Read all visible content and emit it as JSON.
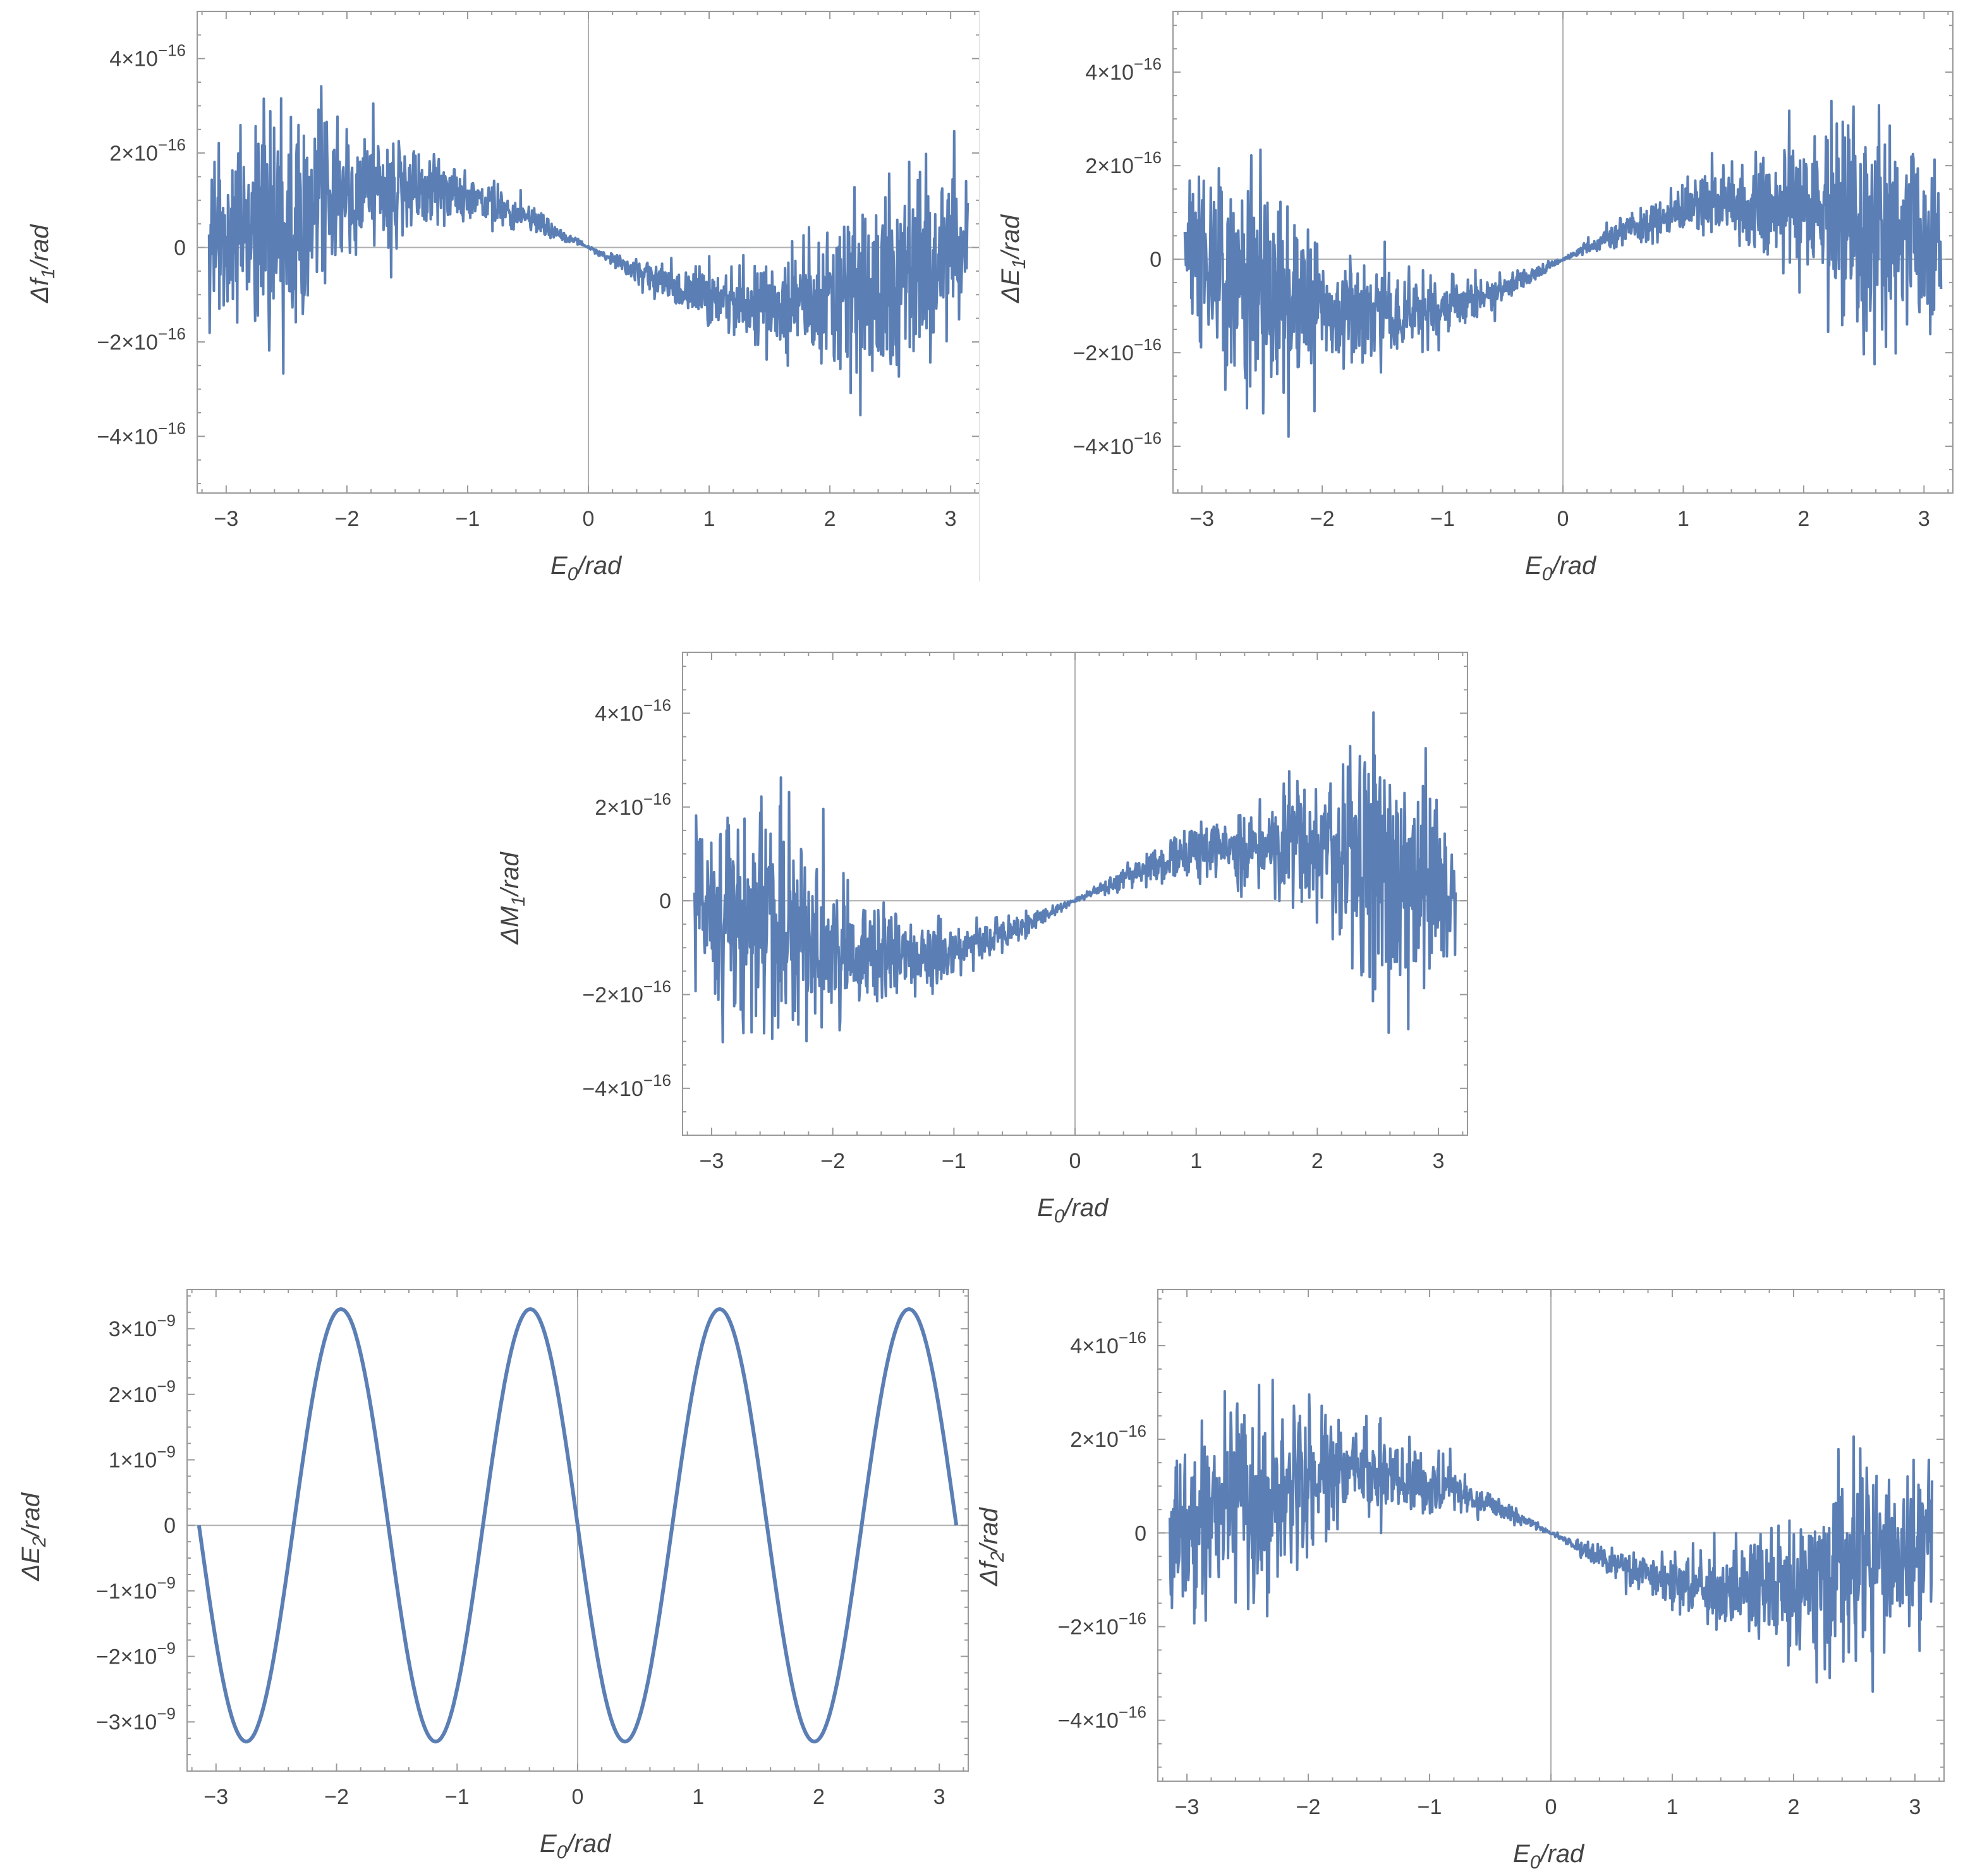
{
  "colors": {
    "series": "#5b7fb5",
    "frame": "#999999",
    "zero_line": "#b0b0b0",
    "text": "#444444"
  },
  "chart_data": [
    {
      "id": "df1",
      "type": "line",
      "title": "",
      "xlabel": "E0/rad",
      "xlabel_main": "E",
      "xlabel_sub": "0",
      "xlabel_rest": "/rad",
      "ylabel": "Δf1/rad",
      "ylabel_main": "Δf",
      "ylabel_sub": "1",
      "ylabel_rest": "/rad",
      "xlim": [
        -3.24,
        3.24
      ],
      "ylim": [
        -5.2e-16,
        5e-16
      ],
      "x_ticks": [
        -3,
        -2,
        -1,
        0,
        1,
        2,
        3
      ],
      "x_tick_labels": [
        "−3",
        "−2",
        "−1",
        "0",
        "1",
        "2",
        "3"
      ],
      "y_ticks": [
        {
          "value": 4e-16,
          "mant": "4",
          "exp": "−16"
        },
        {
          "value": 2e-16,
          "mant": "2",
          "exp": "−16"
        },
        {
          "value": 0,
          "mant": "0",
          "exp": ""
        },
        {
          "value": -2e-16,
          "mant": "−2",
          "exp": "−16"
        },
        {
          "value": -4e-16,
          "mant": "−4",
          "exp": "−16"
        }
      ],
      "grid": false,
      "noise": {
        "trend_sign": -1,
        "trend_amplitude": 1.3e-16,
        "noise_envelope": [
          [
            -3.14,
            2.3e-16
          ],
          [
            -2.5,
            3.6e-16
          ],
          [
            -2.0,
            2e-16
          ],
          [
            -1.0,
            8e-17
          ],
          [
            0,
            5e-18
          ],
          [
            1.0,
            8e-17
          ],
          [
            2.0,
            2e-16
          ],
          [
            2.5,
            3.6e-16
          ],
          [
            3.14,
            2.3e-16
          ]
        ]
      }
    },
    {
      "id": "dE1",
      "type": "line",
      "title": "",
      "xlabel": "E0/rad",
      "xlabel_main": "E",
      "xlabel_sub": "0",
      "xlabel_rest": "/rad",
      "ylabel": "ΔE1/rad",
      "ylabel_main": "ΔE",
      "ylabel_sub": "1",
      "ylabel_rest": "/rad",
      "xlim": [
        -3.24,
        3.24
      ],
      "ylim": [
        -5e-16,
        5.3e-16
      ],
      "x_ticks": [
        -3,
        -2,
        -1,
        0,
        1,
        2,
        3
      ],
      "x_tick_labels": [
        "−3",
        "−2",
        "−1",
        "0",
        "1",
        "2",
        "3"
      ],
      "y_ticks": [
        {
          "value": 4e-16,
          "mant": "4",
          "exp": "−16"
        },
        {
          "value": 2e-16,
          "mant": "2",
          "exp": "−16"
        },
        {
          "value": 0,
          "mant": "0",
          "exp": ""
        },
        {
          "value": -2e-16,
          "mant": "−2",
          "exp": "−16"
        },
        {
          "value": -4e-16,
          "mant": "−4",
          "exp": "−16"
        }
      ],
      "grid": false,
      "noise": {
        "trend_sign": 1,
        "trend_amplitude": 1.3e-16,
        "noise_envelope": [
          [
            -3.14,
            2.3e-16
          ],
          [
            -2.5,
            3.8e-16
          ],
          [
            -2.0,
            2e-16
          ],
          [
            -1.0,
            8e-17
          ],
          [
            0,
            5e-18
          ],
          [
            1.0,
            8e-17
          ],
          [
            2.0,
            2e-16
          ],
          [
            2.4,
            3.8e-16
          ],
          [
            3.14,
            2.3e-16
          ]
        ]
      }
    },
    {
      "id": "dM1",
      "type": "line",
      "title": "",
      "xlabel": "E0/rad",
      "xlabel_main": "E",
      "xlabel_sub": "0",
      "xlabel_rest": "/rad",
      "ylabel": "ΔM1/rad",
      "ylabel_main": "ΔM",
      "ylabel_sub": "1",
      "ylabel_rest": "/rad",
      "xlim": [
        -3.24,
        3.24
      ],
      "ylim": [
        -5e-16,
        5.3e-16
      ],
      "x_ticks": [
        -3,
        -2,
        -1,
        0,
        1,
        2,
        3
      ],
      "x_tick_labels": [
        "−3",
        "−2",
        "−1",
        "0",
        "1",
        "2",
        "3"
      ],
      "y_ticks": [
        {
          "value": 4e-16,
          "mant": "4",
          "exp": "−16"
        },
        {
          "value": 2e-16,
          "mant": "2",
          "exp": "−16"
        },
        {
          "value": 0,
          "mant": "0",
          "exp": ""
        },
        {
          "value": -2e-16,
          "mant": "−2",
          "exp": "−16"
        },
        {
          "value": -4e-16,
          "mant": "−4",
          "exp": "−16"
        }
      ],
      "grid": false,
      "noise": {
        "trend_sign": 1,
        "trend_amplitude": 1.3e-16,
        "noise_envelope": [
          [
            -3.14,
            2.3e-16
          ],
          [
            -2.5,
            3.8e-16
          ],
          [
            -2.0,
            2e-16
          ],
          [
            -1.0,
            8e-17
          ],
          [
            0,
            5e-18
          ],
          [
            1.0,
            8e-17
          ],
          [
            2.0,
            2e-16
          ],
          [
            2.4,
            3.8e-16
          ],
          [
            3.14,
            2.3e-16
          ]
        ]
      }
    },
    {
      "id": "dE2",
      "type": "line",
      "title": "",
      "xlabel": "E0/rad",
      "xlabel_main": "E",
      "xlabel_sub": "0",
      "xlabel_rest": "/rad",
      "ylabel": "ΔE2/rad",
      "ylabel_main": "ΔE",
      "ylabel_sub": "2",
      "ylabel_rest": "/rad",
      "xlim": [
        -3.24,
        3.24
      ],
      "ylim": [
        -3.75e-09,
        3.6e-09
      ],
      "x_ticks": [
        -3,
        -2,
        -1,
        0,
        1,
        2,
        3
      ],
      "x_tick_labels": [
        "−3",
        "−2",
        "−1",
        "0",
        "1",
        "2",
        "3"
      ],
      "y_ticks": [
        {
          "value": 3e-09,
          "mant": "3",
          "exp": "−9"
        },
        {
          "value": 2e-09,
          "mant": "2",
          "exp": "−9"
        },
        {
          "value": 1e-09,
          "mant": "1",
          "exp": "−9"
        },
        {
          "value": 0,
          "mant": "0",
          "exp": ""
        },
        {
          "value": -1e-09,
          "mant": "−1",
          "exp": "−9"
        },
        {
          "value": -2e-09,
          "mant": "−2",
          "exp": "−9"
        },
        {
          "value": -3e-09,
          "mant": "−3",
          "exp": "−9"
        }
      ],
      "grid": false,
      "smooth": {
        "amplitude": 3.3e-09,
        "frequency": 4,
        "x_range": [
          -3.1416,
          3.1416
        ]
      }
    },
    {
      "id": "df2",
      "type": "line",
      "title": "",
      "xlabel": "E0/rad",
      "xlabel_main": "E",
      "xlabel_sub": "0",
      "xlabel_rest": "/rad",
      "ylabel": "Δf2/rad",
      "ylabel_main": "Δf",
      "ylabel_sub": "2",
      "ylabel_rest": "/rad",
      "xlim": [
        -3.24,
        3.24
      ],
      "ylim": [
        -5.3e-16,
        5.2e-16
      ],
      "x_ticks": [
        -3,
        -2,
        -1,
        0,
        1,
        2,
        3
      ],
      "x_tick_labels": [
        "−3",
        "−2",
        "−1",
        "0",
        "1",
        "2",
        "3"
      ],
      "y_ticks": [
        {
          "value": 4e-16,
          "mant": "4",
          "exp": "−16"
        },
        {
          "value": 2e-16,
          "mant": "2",
          "exp": "−16"
        },
        {
          "value": 0,
          "mant": "0",
          "exp": ""
        },
        {
          "value": -2e-16,
          "mant": "−2",
          "exp": "−16"
        },
        {
          "value": -4e-16,
          "mant": "−4",
          "exp": "−16"
        }
      ],
      "grid": false,
      "noise": {
        "trend_sign": -1,
        "trend_amplitude": 1.3e-16,
        "noise_envelope": [
          [
            -3.14,
            2.3e-16
          ],
          [
            -2.5,
            3.6e-16
          ],
          [
            -2.0,
            2e-16
          ],
          [
            -1.0,
            8e-17
          ],
          [
            0,
            5e-18
          ],
          [
            1.0,
            8e-17
          ],
          [
            2.0,
            2e-16
          ],
          [
            2.5,
            3.6e-16
          ],
          [
            3.14,
            2.3e-16
          ]
        ]
      }
    }
  ]
}
